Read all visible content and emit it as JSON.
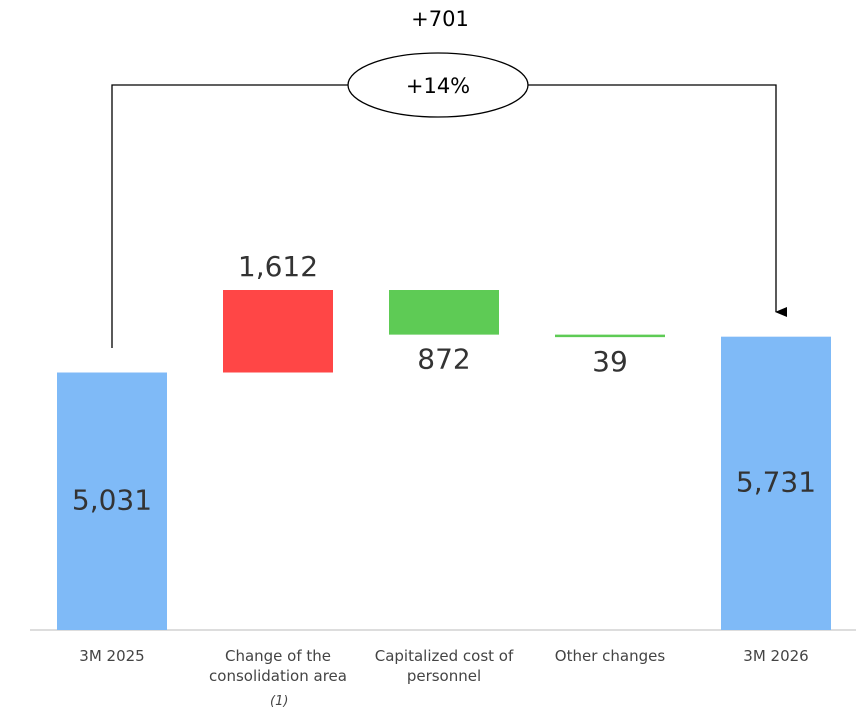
{
  "chart_data": {
    "type": "waterfall",
    "categories": [
      "3M 2025",
      "Change of the consolidation area",
      "Capitalized cost of personnel",
      "Other changes",
      "3M 2026"
    ],
    "values": [
      5031,
      1612,
      -872,
      -39,
      5731
    ],
    "value_labels": [
      "5,031",
      "1,612",
      "872",
      "39",
      "5,731"
    ],
    "colors": [
      "#7fbaf7",
      "#ff4646",
      "#5ecb55",
      "#5ecb55",
      "#7fbaf7"
    ],
    "footnote": "(1)",
    "annotations": {
      "change": "+701",
      "change_pct": "+14%"
    }
  }
}
